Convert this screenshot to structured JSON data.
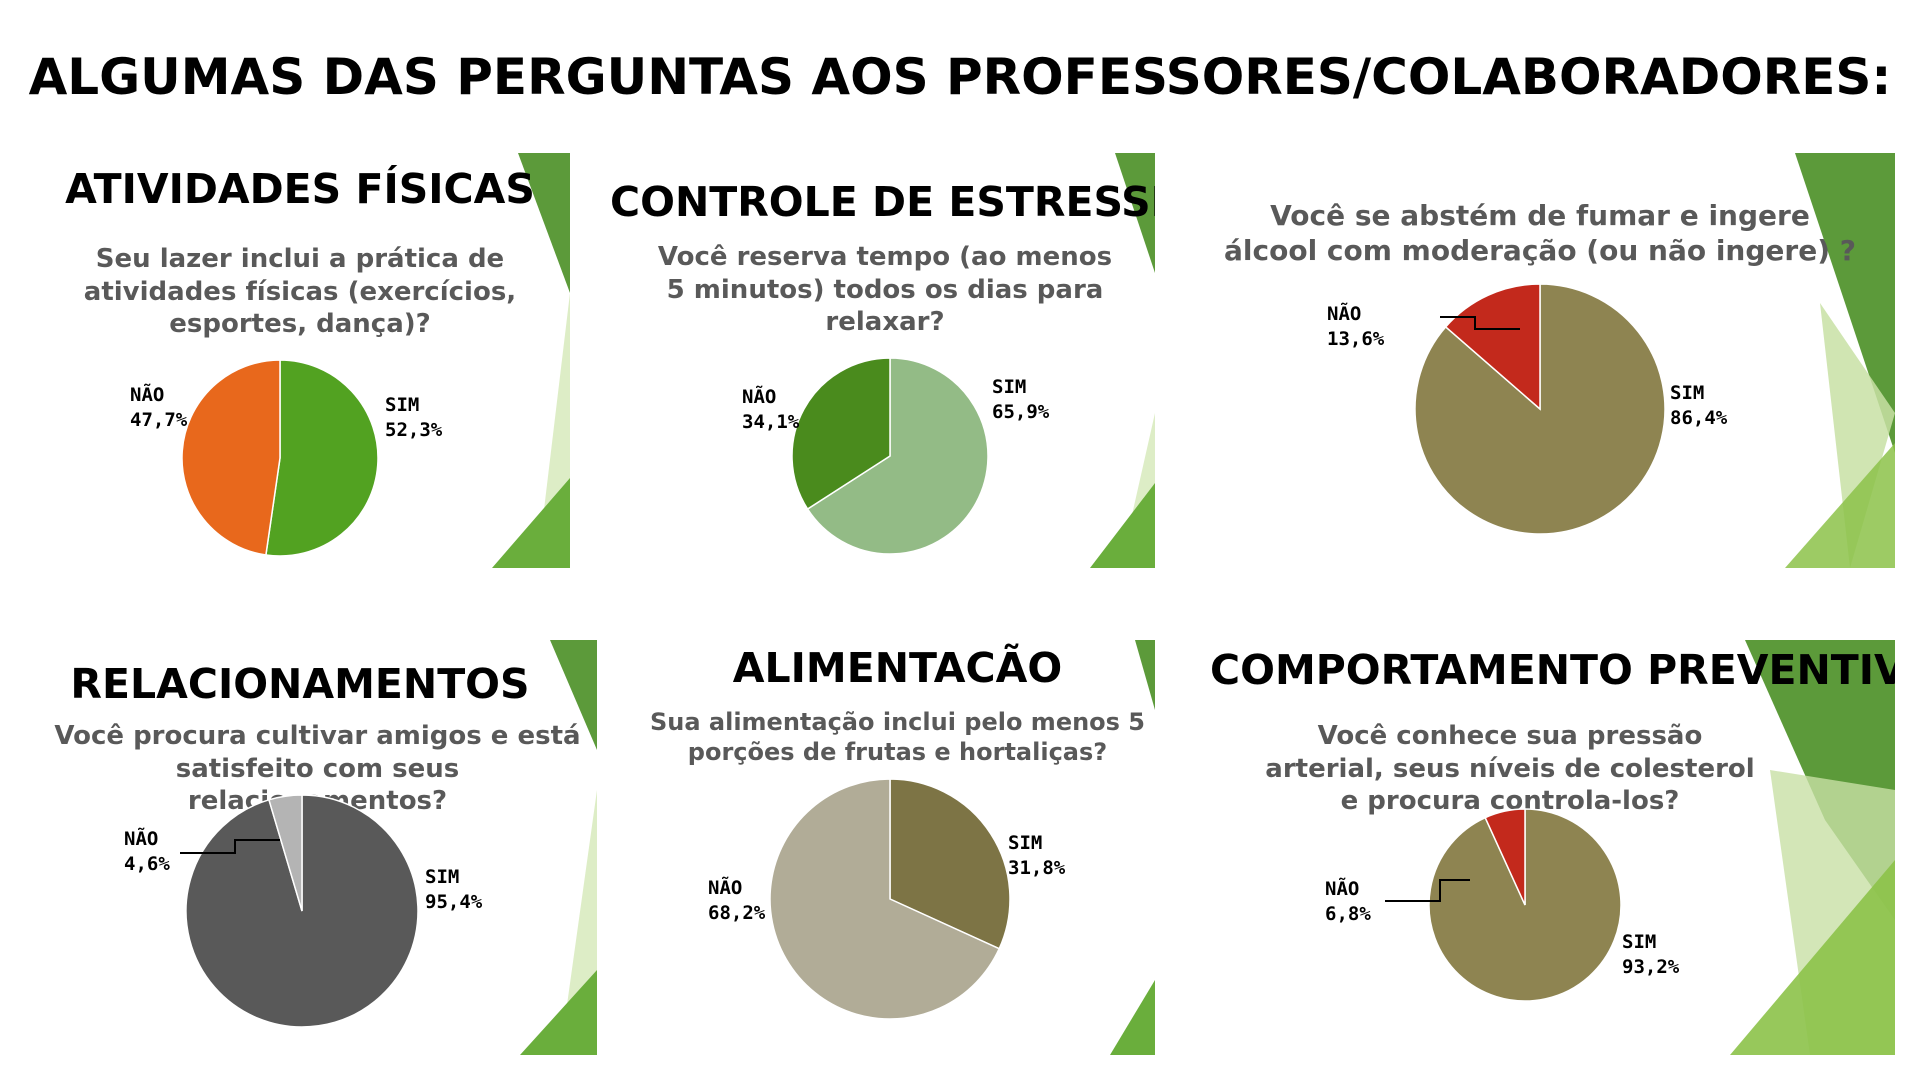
{
  "title": "ALGUMAS DAS PERGUNTAS AOS PROFESSORES/COLABORADORES:",
  "chart_data": [
    {
      "type": "pie",
      "title": "ATIVIDADES FÍSICAS",
      "subtitle": "Seu lazer inclui a prática de atividades físicas (exercícios, esportes, dança)?",
      "slices": [
        {
          "label": "SIM",
          "value": 52.3,
          "display": "52,3%",
          "color": "#52A221"
        },
        {
          "label": "NÃO",
          "value": 47.7,
          "display": "47,7%",
          "color": "#E8681C"
        }
      ]
    },
    {
      "type": "pie",
      "title": "CONTROLE DE ESTRESSE",
      "subtitle": "Você reserva tempo (ao menos 5 minutos) todos os dias para relaxar?",
      "slices": [
        {
          "label": "SIM",
          "value": 65.9,
          "display": "65,9%",
          "color": "#93BB86"
        },
        {
          "label": "NÃO",
          "value": 34.1,
          "display": "34,1%",
          "color": "#4A8B1D"
        }
      ]
    },
    {
      "type": "pie",
      "title": "",
      "subtitle": "Você se abstém de fumar e ingere álcool com moderação (ou não ingere) ?",
      "slices": [
        {
          "label": "SIM",
          "value": 86.4,
          "display": "86,4%",
          "color": "#8E8451"
        },
        {
          "label": "NÃO",
          "value": 13.6,
          "display": "13,6%",
          "color": "#C3291C"
        }
      ]
    },
    {
      "type": "pie",
      "title": "RELACIONAMENTOS",
      "subtitle": "Você procura cultivar amigos e está satisfeito com seus relacionamentos?",
      "slices": [
        {
          "label": "SIM",
          "value": 95.4,
          "display": "95,4%",
          "color": "#595959"
        },
        {
          "label": "NÃO",
          "value": 4.6,
          "display": "4,6%",
          "color": "#B4B4B4"
        }
      ]
    },
    {
      "type": "pie",
      "title": "ALIMENTACÃO",
      "subtitle": "Sua alimentação inclui pelo menos 5 porções de frutas e hortaliças?",
      "slices": [
        {
          "label": "SIM",
          "value": 31.8,
          "display": "31,8%",
          "color": "#7D7445"
        },
        {
          "label": "NÃO",
          "value": 68.2,
          "display": "68,2%",
          "color": "#B1AC97"
        }
      ]
    },
    {
      "type": "pie",
      "title": "COMPORTAMENTO PREVENTIVO",
      "subtitle": "Você conhece sua pressão arterial, seus níveis de colesterol e procura controla-los?",
      "slices": [
        {
          "label": "SIM",
          "value": 93.2,
          "display": "93,2%",
          "color": "#8E8451"
        },
        {
          "label": "NÃO",
          "value": 6.8,
          "display": "6,8%",
          "color": "#C3291C"
        }
      ]
    }
  ]
}
